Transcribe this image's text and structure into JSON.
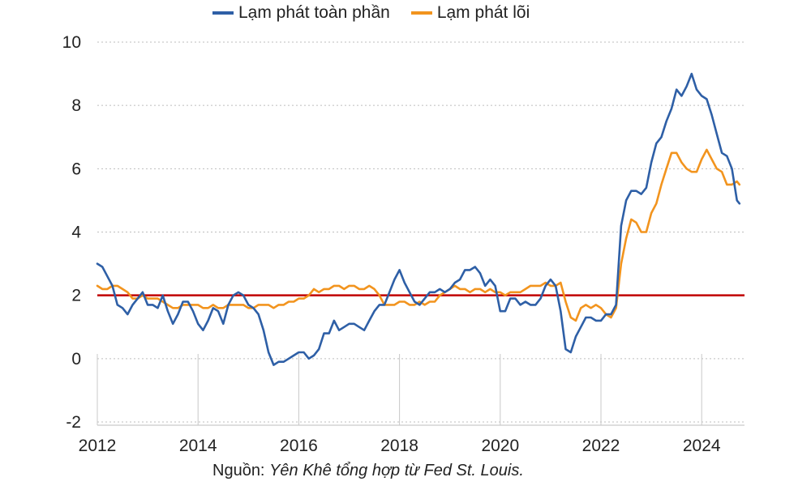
{
  "chart_data": {
    "type": "line",
    "title": "",
    "xlabel": "",
    "ylabel": "",
    "xlim": [
      2012,
      2024.85
    ],
    "ylim": [
      -2,
      10
    ],
    "xticks": [
      "2012",
      "2014",
      "2016",
      "2018",
      "2020",
      "2022",
      "2024"
    ],
    "yticks": [
      "-2",
      "0",
      "2",
      "4",
      "6",
      "8",
      "10"
    ],
    "grid": "horizontal dotted",
    "legend_position": "top",
    "reference_line": {
      "value": 2,
      "color": "#c00000"
    },
    "series": [
      {
        "name": "Lạm phát toàn phần",
        "color": "#2e5fa6",
        "points": [
          [
            2012.0,
            3.0
          ],
          [
            2012.1,
            2.9
          ],
          [
            2012.2,
            2.6
          ],
          [
            2012.3,
            2.3
          ],
          [
            2012.4,
            1.7
          ],
          [
            2012.5,
            1.6
          ],
          [
            2012.6,
            1.4
          ],
          [
            2012.7,
            1.7
          ],
          [
            2012.9,
            2.1
          ],
          [
            2013.0,
            1.7
          ],
          [
            2013.1,
            1.7
          ],
          [
            2013.2,
            1.6
          ],
          [
            2013.3,
            2.0
          ],
          [
            2013.4,
            1.5
          ],
          [
            2013.5,
            1.1
          ],
          [
            2013.6,
            1.4
          ],
          [
            2013.7,
            1.8
          ],
          [
            2013.8,
            1.8
          ],
          [
            2013.9,
            1.5
          ],
          [
            2014.0,
            1.1
          ],
          [
            2014.1,
            0.9
          ],
          [
            2014.2,
            1.2
          ],
          [
            2014.3,
            1.6
          ],
          [
            2014.4,
            1.5
          ],
          [
            2014.5,
            1.1
          ],
          [
            2014.6,
            1.7
          ],
          [
            2014.7,
            2.0
          ],
          [
            2014.8,
            2.1
          ],
          [
            2014.9,
            2.0
          ],
          [
            2015.0,
            1.7
          ],
          [
            2015.1,
            1.6
          ],
          [
            2015.2,
            1.4
          ],
          [
            2015.3,
            0.9
          ],
          [
            2015.4,
            0.2
          ],
          [
            2015.5,
            -0.2
          ],
          [
            2015.6,
            -0.1
          ],
          [
            2015.7,
            -0.1
          ],
          [
            2015.8,
            0.0
          ],
          [
            2015.9,
            0.1
          ],
          [
            2016.0,
            0.2
          ],
          [
            2016.1,
            0.2
          ],
          [
            2016.2,
            0.0
          ],
          [
            2016.3,
            0.1
          ],
          [
            2016.4,
            0.3
          ],
          [
            2016.5,
            0.8
          ],
          [
            2016.6,
            0.8
          ],
          [
            2016.7,
            1.2
          ],
          [
            2016.8,
            0.9
          ],
          [
            2016.9,
            1.0
          ],
          [
            2017.0,
            1.1
          ],
          [
            2017.1,
            1.1
          ],
          [
            2017.2,
            1.0
          ],
          [
            2017.3,
            0.9
          ],
          [
            2017.4,
            1.2
          ],
          [
            2017.5,
            1.5
          ],
          [
            2017.6,
            1.7
          ],
          [
            2017.7,
            1.7
          ],
          [
            2017.8,
            2.1
          ],
          [
            2017.9,
            2.5
          ],
          [
            2018.0,
            2.8
          ],
          [
            2018.1,
            2.4
          ],
          [
            2018.2,
            2.1
          ],
          [
            2018.3,
            1.8
          ],
          [
            2018.4,
            1.7
          ],
          [
            2018.5,
            1.9
          ],
          [
            2018.6,
            2.1
          ],
          [
            2018.7,
            2.1
          ],
          [
            2018.8,
            2.2
          ],
          [
            2018.9,
            2.1
          ],
          [
            2019.0,
            2.2
          ],
          [
            2019.1,
            2.4
          ],
          [
            2019.2,
            2.5
          ],
          [
            2019.3,
            2.8
          ],
          [
            2019.4,
            2.8
          ],
          [
            2019.5,
            2.9
          ],
          [
            2019.6,
            2.7
          ],
          [
            2019.7,
            2.3
          ],
          [
            2019.8,
            2.5
          ],
          [
            2019.9,
            2.3
          ],
          [
            2020.0,
            1.5
          ],
          [
            2020.1,
            1.5
          ],
          [
            2020.2,
            1.9
          ],
          [
            2020.3,
            1.9
          ],
          [
            2020.4,
            1.7
          ],
          [
            2020.5,
            1.8
          ],
          [
            2020.6,
            1.7
          ],
          [
            2020.7,
            1.7
          ],
          [
            2020.8,
            1.9
          ],
          [
            2020.9,
            2.3
          ],
          [
            2021.0,
            2.5
          ],
          [
            2021.1,
            2.3
          ],
          [
            2021.2,
            1.5
          ],
          [
            2021.3,
            0.3
          ],
          [
            2021.4,
            0.2
          ],
          [
            2021.5,
            0.7
          ],
          [
            2021.6,
            1.0
          ],
          [
            2021.7,
            1.3
          ],
          [
            2021.8,
            1.3
          ],
          [
            2021.9,
            1.2
          ],
          [
            2022.0,
            1.2
          ],
          [
            2022.1,
            1.4
          ],
          [
            2022.2,
            1.4
          ],
          [
            2022.3,
            1.7
          ],
          [
            2022.4,
            4.2
          ],
          [
            2022.5,
            5.0
          ],
          [
            2022.6,
            5.3
          ],
          [
            2022.7,
            5.3
          ],
          [
            2022.8,
            5.2
          ],
          [
            2022.9,
            5.4
          ],
          [
            2023.0,
            6.2
          ],
          [
            2023.1,
            6.8
          ],
          [
            2023.2,
            7.0
          ],
          [
            2023.3,
            7.5
          ],
          [
            2023.4,
            7.9
          ],
          [
            2023.5,
            8.5
          ],
          [
            2023.6,
            8.3
          ],
          [
            2023.7,
            8.6
          ],
          [
            2023.8,
            9.0
          ],
          [
            2023.9,
            8.5
          ],
          [
            2024.0,
            8.3
          ],
          [
            2024.1,
            8.2
          ],
          [
            2024.2,
            7.7
          ],
          [
            2024.3,
            7.1
          ],
          [
            2024.4,
            6.5
          ],
          [
            2024.5,
            6.4
          ],
          [
            2024.6,
            6.0
          ],
          [
            2024.7,
            5.0
          ],
          [
            2024.75,
            4.9
          ]
        ]
      },
      {
        "name": "Lạm phát lõi",
        "color": "#f2941e",
        "points": [
          [
            2012.0,
            2.3
          ],
          [
            2012.1,
            2.2
          ],
          [
            2012.2,
            2.2
          ],
          [
            2012.3,
            2.3
          ],
          [
            2012.4,
            2.3
          ],
          [
            2012.5,
            2.2
          ],
          [
            2012.6,
            2.1
          ],
          [
            2012.7,
            1.9
          ],
          [
            2012.8,
            1.9
          ],
          [
            2012.9,
            2.0
          ],
          [
            2013.0,
            1.9
          ],
          [
            2013.1,
            1.9
          ],
          [
            2013.2,
            1.9
          ],
          [
            2013.3,
            1.8
          ],
          [
            2013.4,
            1.7
          ],
          [
            2013.5,
            1.6
          ],
          [
            2013.6,
            1.6
          ],
          [
            2013.7,
            1.7
          ],
          [
            2013.8,
            1.7
          ],
          [
            2013.9,
            1.7
          ],
          [
            2014.0,
            1.7
          ],
          [
            2014.1,
            1.6
          ],
          [
            2014.2,
            1.6
          ],
          [
            2014.3,
            1.7
          ],
          [
            2014.4,
            1.6
          ],
          [
            2014.5,
            1.6
          ],
          [
            2014.6,
            1.7
          ],
          [
            2014.7,
            1.7
          ],
          [
            2014.8,
            1.7
          ],
          [
            2014.9,
            1.7
          ],
          [
            2015.0,
            1.6
          ],
          [
            2015.1,
            1.6
          ],
          [
            2015.2,
            1.7
          ],
          [
            2015.3,
            1.7
          ],
          [
            2015.4,
            1.7
          ],
          [
            2015.5,
            1.6
          ],
          [
            2015.6,
            1.7
          ],
          [
            2015.7,
            1.7
          ],
          [
            2015.8,
            1.8
          ],
          [
            2015.9,
            1.8
          ],
          [
            2016.0,
            1.9
          ],
          [
            2016.1,
            1.9
          ],
          [
            2016.2,
            2.0
          ],
          [
            2016.3,
            2.2
          ],
          [
            2016.4,
            2.1
          ],
          [
            2016.5,
            2.2
          ],
          [
            2016.6,
            2.2
          ],
          [
            2016.7,
            2.3
          ],
          [
            2016.8,
            2.3
          ],
          [
            2016.9,
            2.2
          ],
          [
            2017.0,
            2.3
          ],
          [
            2017.1,
            2.3
          ],
          [
            2017.2,
            2.2
          ],
          [
            2017.3,
            2.2
          ],
          [
            2017.4,
            2.3
          ],
          [
            2017.5,
            2.2
          ],
          [
            2017.6,
            2.0
          ],
          [
            2017.7,
            1.7
          ],
          [
            2017.8,
            1.7
          ],
          [
            2017.9,
            1.7
          ],
          [
            2018.0,
            1.8
          ],
          [
            2018.1,
            1.8
          ],
          [
            2018.2,
            1.7
          ],
          [
            2018.3,
            1.7
          ],
          [
            2018.4,
            1.8
          ],
          [
            2018.5,
            1.7
          ],
          [
            2018.6,
            1.8
          ],
          [
            2018.7,
            1.8
          ],
          [
            2018.8,
            2.0
          ],
          [
            2018.9,
            2.1
          ],
          [
            2019.0,
            2.2
          ],
          [
            2019.1,
            2.3
          ],
          [
            2019.2,
            2.2
          ],
          [
            2019.3,
            2.2
          ],
          [
            2019.4,
            2.1
          ],
          [
            2019.5,
            2.2
          ],
          [
            2019.6,
            2.2
          ],
          [
            2019.7,
            2.1
          ],
          [
            2019.8,
            2.2
          ],
          [
            2019.9,
            2.1
          ],
          [
            2020.0,
            2.1
          ],
          [
            2020.1,
            2.0
          ],
          [
            2020.2,
            2.1
          ],
          [
            2020.3,
            2.1
          ],
          [
            2020.4,
            2.1
          ],
          [
            2020.5,
            2.2
          ],
          [
            2020.6,
            2.3
          ],
          [
            2020.7,
            2.3
          ],
          [
            2020.8,
            2.3
          ],
          [
            2020.9,
            2.4
          ],
          [
            2021.0,
            2.3
          ],
          [
            2021.1,
            2.3
          ],
          [
            2021.2,
            2.4
          ],
          [
            2021.3,
            1.8
          ],
          [
            2021.4,
            1.3
          ],
          [
            2021.5,
            1.2
          ],
          [
            2021.6,
            1.6
          ],
          [
            2021.7,
            1.7
          ],
          [
            2021.8,
            1.6
          ],
          [
            2021.9,
            1.7
          ],
          [
            2022.0,
            1.6
          ],
          [
            2022.1,
            1.4
          ],
          [
            2022.2,
            1.3
          ],
          [
            2022.3,
            1.6
          ],
          [
            2022.4,
            3.0
          ],
          [
            2022.5,
            3.8
          ],
          [
            2022.6,
            4.4
          ],
          [
            2022.7,
            4.3
          ],
          [
            2022.8,
            4.0
          ],
          [
            2022.9,
            4.0
          ],
          [
            2023.0,
            4.6
          ],
          [
            2023.1,
            4.9
          ],
          [
            2023.2,
            5.5
          ],
          [
            2023.3,
            6.0
          ],
          [
            2023.4,
            6.5
          ],
          [
            2023.5,
            6.5
          ],
          [
            2023.6,
            6.2
          ],
          [
            2023.7,
            6.0
          ],
          [
            2023.8,
            5.9
          ],
          [
            2023.9,
            5.9
          ],
          [
            2024.0,
            6.3
          ],
          [
            2024.1,
            6.6
          ],
          [
            2024.2,
            6.3
          ],
          [
            2024.3,
            6.0
          ],
          [
            2024.4,
            5.9
          ],
          [
            2024.5,
            5.5
          ],
          [
            2024.6,
            5.5
          ],
          [
            2024.7,
            5.6
          ],
          [
            2024.75,
            5.5
          ]
        ]
      }
    ]
  },
  "legend": {
    "full": "Lạm phát toàn phần",
    "core": "Lạm phát lõi"
  },
  "source": {
    "prefix": "Nguồn: ",
    "detail": "Yên Khê tổng hợp từ Fed St. Louis."
  }
}
